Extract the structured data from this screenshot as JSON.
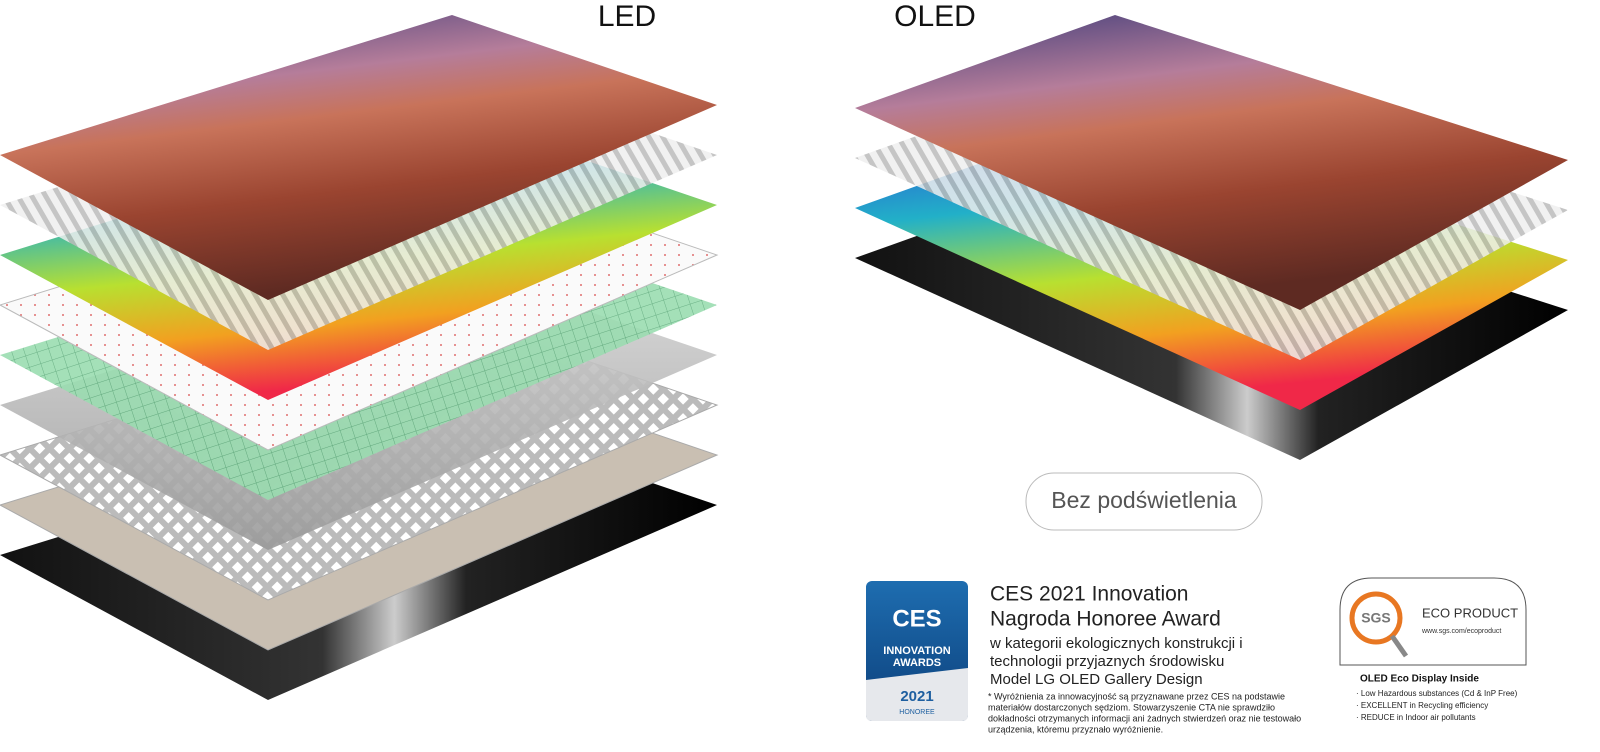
{
  "led": {
    "label": "LED"
  },
  "oled": {
    "label": "OLED"
  },
  "button": {
    "label": "Bez podświetlenia"
  },
  "ces": {
    "badge": {
      "logo": "CES",
      "line1": "INNOVATION",
      "line2": "AWARDS",
      "year": "2021",
      "rank": "HONOREE"
    },
    "title_lines": [
      "CES 2021 Innovation",
      "Nagroda Honoree Award"
    ],
    "description_lines": [
      "w kategorii ekologicznych konstrukcji i",
      "technologii przyjaznych środowisku",
      "Model LG OLED Gallery Design"
    ],
    "footnote_lines": [
      "* Wyróżnienia za innowacyjność są przyznawane przez CES na podstawie",
      "materiałów dostarczonych sędziom. Stowarzyszenie CTA nie sprawdziło",
      "dokładności otrzymanych informacji ani żadnych stwierdzeń oraz nie testowało",
      "urządzenia, któremu przyznało wyróżnienie."
    ]
  },
  "sgs": {
    "logo": "SGS",
    "label": "ECO PRODUCT",
    "url": "www.sgs.com/ecoproduct",
    "heading": "OLED Eco Display Inside",
    "bullets": [
      "· Low Hazardous substances (Cd & InP Free)",
      "· EXCELLENT in Recycling efficiency",
      "· REDUCE in Indoor air pollutants"
    ]
  }
}
